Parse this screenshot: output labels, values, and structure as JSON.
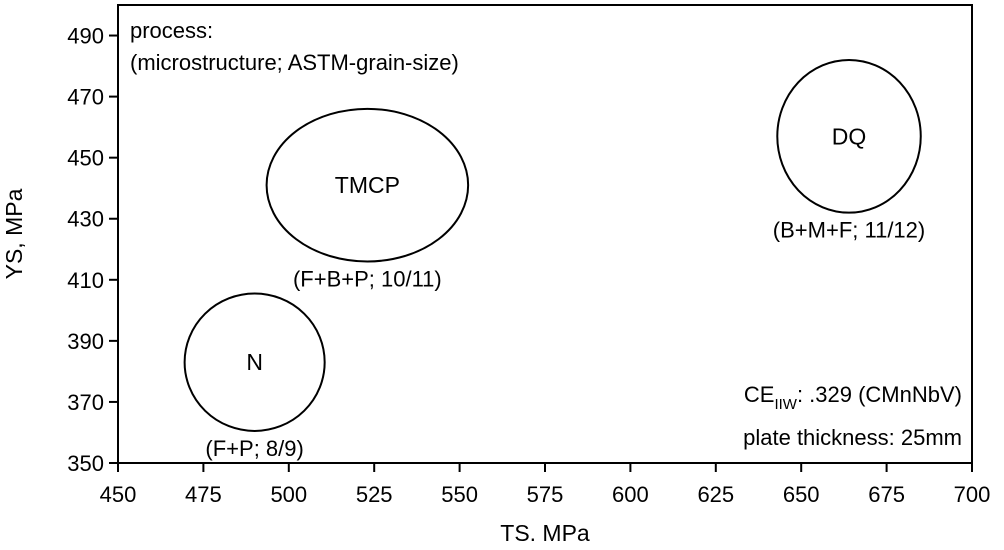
{
  "chart_data": {
    "type": "scatter",
    "title": "",
    "xlabel": "TS. MPa",
    "ylabel": "YS, MPa",
    "xlim": [
      450,
      700
    ],
    "ylim": [
      350,
      500
    ],
    "xticks": [
      450,
      475,
      500,
      525,
      550,
      575,
      600,
      625,
      650,
      675,
      700
    ],
    "yticks": [
      350,
      370,
      390,
      410,
      430,
      450,
      470,
      490
    ],
    "grid": false,
    "legend_note": [
      "process:",
      "(microstructure; ASTM-grain-size)"
    ],
    "regions": [
      {
        "label": "N",
        "annotation": "(F+P; 8/9)",
        "x_center": 490,
        "y_center": 383,
        "x_range": [
          470,
          511
        ],
        "y_range": [
          361,
          406
        ]
      },
      {
        "label": "TMCP",
        "annotation": "(F+B+P; 10/11)",
        "x_center": 523,
        "y_center": 441,
        "x_range": [
          494,
          553
        ],
        "y_range": [
          416,
          466
        ]
      },
      {
        "label": "DQ",
        "annotation": "(B+M+F; 11/12)",
        "x_center": 664,
        "y_center": 457,
        "x_range": [
          643,
          685
        ],
        "y_range": [
          432,
          482
        ]
      }
    ],
    "annotations": {
      "ce_prefix": "CE",
      "ce_sub": "IIW",
      "ce_value": ": .329 (CMnNbV)",
      "thickness": "plate thickness: 25mm"
    }
  }
}
